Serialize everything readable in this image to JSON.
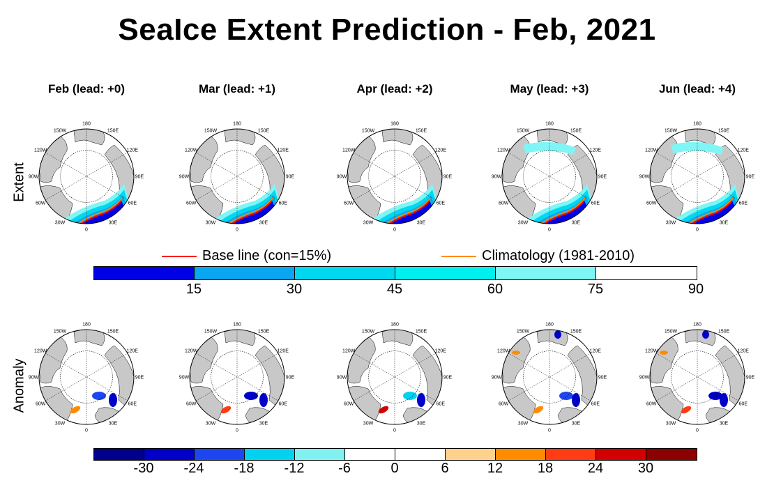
{
  "title": "SeaIce Extent Prediction - Feb, 2021",
  "columns": [
    {
      "label": "Feb (lead: +0)"
    },
    {
      "label": "Mar (lead: +1)"
    },
    {
      "label": "Apr (lead: +2)"
    },
    {
      "label": "May (lead: +3)"
    },
    {
      "label": "Jun (lead: +4)"
    }
  ],
  "rows": [
    {
      "label": "Extent"
    },
    {
      "label": "Anomaly"
    }
  ],
  "map_labels": [
    "180",
    "150E",
    "120E",
    "90E",
    "60E",
    "30E",
    "0",
    "30W",
    "60W",
    "90W",
    "120W",
    "150W"
  ],
  "extent_legend": {
    "lines": [
      {
        "label": "Base line (con=15%)",
        "color": "#ff0000"
      },
      {
        "label": "Climatology (1981-2010)",
        "color": "#ff8c00"
      }
    ],
    "colors": [
      "#0000e6",
      "#0a5aee",
      "#0aa6f2",
      "#00d8f0",
      "#00f0f0",
      "#80f5f5",
      "#ffffff"
    ],
    "ticks": [
      "15",
      "30",
      "45",
      "60",
      "75",
      "90"
    ]
  },
  "anomaly_legend": {
    "colors": [
      "#00008c",
      "#0000c8",
      "#1e46f0",
      "#00d2f0",
      "#80f0f0",
      "#ffffff",
      "#ffffff",
      "#ffd28c",
      "#ff8c00",
      "#ff3c14",
      "#d20000",
      "#8c0000"
    ],
    "ticks": [
      "-30",
      "-24",
      "-18",
      "-12",
      "-6",
      "0",
      "6",
      "12",
      "18",
      "24",
      "30"
    ]
  },
  "palette": {
    "land": "#c8c8c8",
    "ice_edge": "#ff0000",
    "climatology": "#ff8c00",
    "ocean_ice": "#0000e6"
  }
}
